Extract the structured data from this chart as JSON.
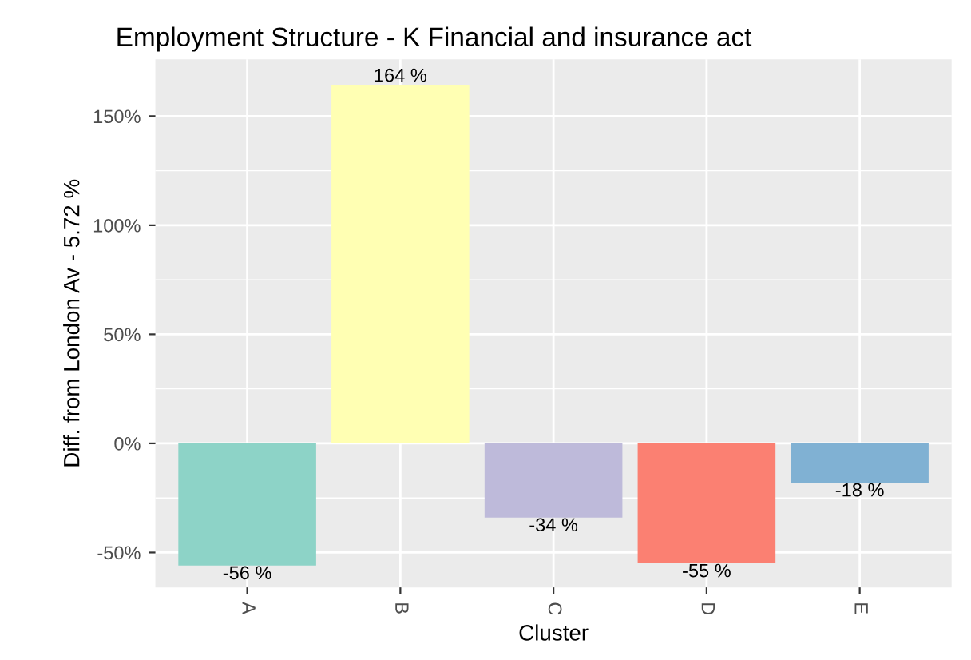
{
  "chart_data": {
    "type": "bar",
    "title": "Employment Structure - K Financial and insurance act",
    "xlabel": "Cluster",
    "ylabel": "Diff. from London Av - 5.72 %",
    "categories": [
      "A",
      "B",
      "C",
      "D",
      "E"
    ],
    "values": [
      -56,
      164,
      -34,
      -55,
      -18
    ],
    "colors": [
      "#8dd3c7",
      "#ffffb3",
      "#bebada",
      "#fb8072",
      "#80b1d3"
    ],
    "value_labels": [
      "-56 %",
      "164 %",
      "-34 %",
      "-55 %",
      "-18 %"
    ],
    "ylim": [
      -66,
      176
    ],
    "yticks": [
      {
        "value": -50,
        "label": "-50%"
      },
      {
        "value": 0,
        "label": "0%"
      },
      {
        "value": 50,
        "label": "50%"
      },
      {
        "value": 100,
        "label": "100%"
      },
      {
        "value": 150,
        "label": "150%"
      }
    ],
    "grid": true,
    "legend": false
  }
}
